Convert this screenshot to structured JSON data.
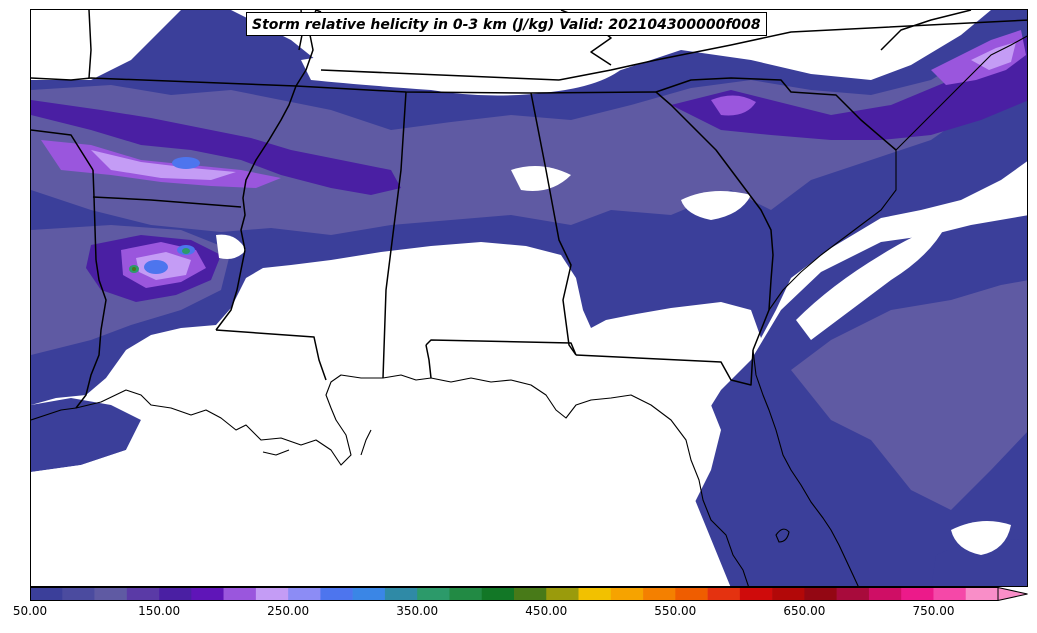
{
  "title": "Storm relative helicity in 0-3 km (J/kg) Valid: 202104300000f008",
  "colorbar": {
    "min": 50,
    "max": 800,
    "step": 25,
    "extend": "max",
    "tick_labels": [
      "50.00",
      "150.00",
      "250.00",
      "350.00",
      "450.00",
      "550.00",
      "650.00",
      "750.00"
    ],
    "colors": [
      "#3b3f9a",
      "#4b4b9f",
      "#5f5aa3",
      "#5a3aa6",
      "#4a1fa3",
      "#5f15b8",
      "#9a56dd",
      "#c49cf5",
      "#8c8cf5",
      "#4d75ee",
      "#3a86e6",
      "#2f8aa6",
      "#2c9a6a",
      "#228a44",
      "#127726",
      "#487a18",
      "#9a9b0c",
      "#f2c100",
      "#f6a300",
      "#f48000",
      "#ef5d00",
      "#e43210",
      "#cf0b0b",
      "#b20808",
      "#930713",
      "#a80b3c",
      "#cf0e65",
      "#ec1a8a",
      "#f548a8",
      "#f98ec8"
    ]
  },
  "map": {
    "field": "storm relative helicity 0-3 km",
    "units": "J/kg",
    "blank_below": 50,
    "colors": {
      "background": "#ffffff",
      "level_1": "#3b3f9a",
      "level_2": "#5f5aa3",
      "level_3": "#4a1fa3",
      "level_4": "#9a56dd",
      "level_5": "#c49cf5",
      "level_6": "#4d75ee",
      "level_7": "#2c9a6a",
      "level_8": "#487a18",
      "boundaries": "#000000"
    }
  }
}
